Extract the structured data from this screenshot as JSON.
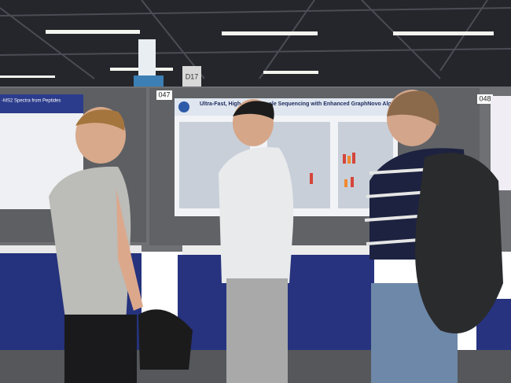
{
  "signs": {
    "booth_left": "047",
    "booth_right": "048",
    "hanging": "D17"
  },
  "posters": {
    "left_title": "-MS2 Spectra from Peptides",
    "center_title_left": "Ultra-Fast, High-",
    "center_title_right": "ale Sequencing with Enhanced GraphNovo Algorithm"
  }
}
